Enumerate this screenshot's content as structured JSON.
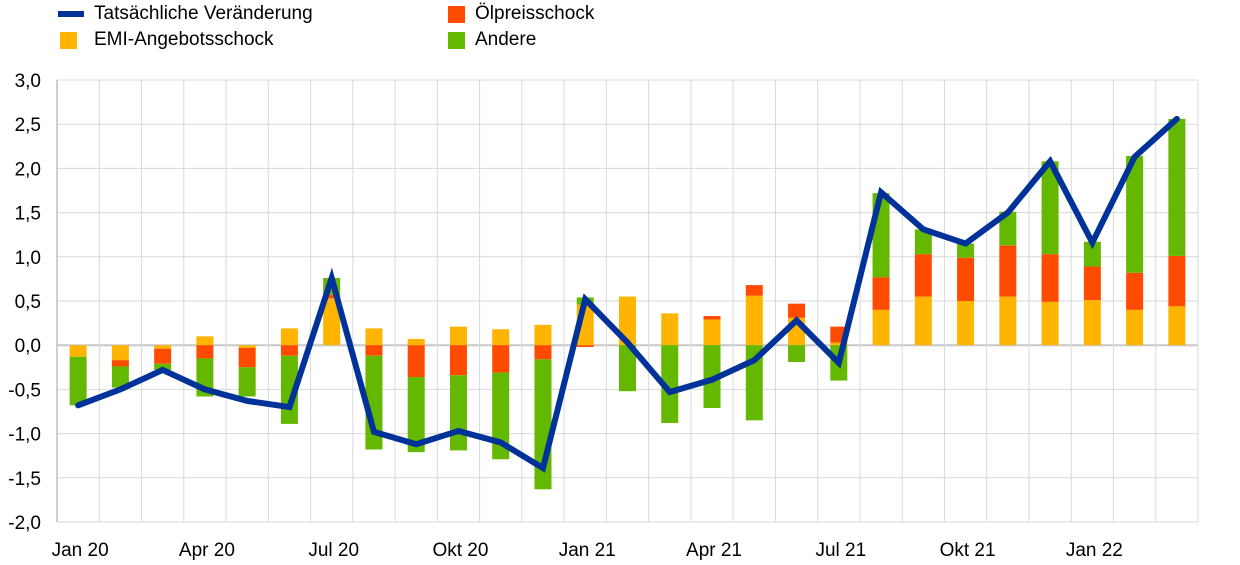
{
  "chart_data": {
    "type": "bar",
    "stacked": true,
    "title": "",
    "xlabel": "",
    "ylabel": "",
    "ylim": [
      -2.0,
      3.0
    ],
    "yticks": [
      "3,0",
      "2,5",
      "2,0",
      "1,5",
      "1,0",
      "0,5",
      "0,0",
      "-0,5",
      "-1,0",
      "-1,5",
      "-2,0"
    ],
    "ytick_values": [
      3.0,
      2.5,
      2.0,
      1.5,
      1.0,
      0.5,
      0.0,
      -0.5,
      -1.0,
      -1.5,
      -2.0
    ],
    "grid": true,
    "legend_placement": "top-left",
    "categories": [
      "Jan 20",
      "Feb 20",
      "Mär 20",
      "Apr 20",
      "Mai 20",
      "Jun 20",
      "Jul 20",
      "Aug 20",
      "Sep 20",
      "Okt 20",
      "Nov 20",
      "Dez 20",
      "Jan 21",
      "Feb 21",
      "Mär 21",
      "Apr 21",
      "Mai 21",
      "Jun 21",
      "Jul 21",
      "Aug 21",
      "Sep 21",
      "Okt 21",
      "Nov 21",
      "Dez 21",
      "Jan 22",
      "Feb 22",
      "Mär 22"
    ],
    "xtick_labels": [
      {
        "index": 0,
        "label": "Jan 20"
      },
      {
        "index": 3,
        "label": "Apr 20"
      },
      {
        "index": 6,
        "label": "Jul 20"
      },
      {
        "index": 9,
        "label": "Okt 20"
      },
      {
        "index": 12,
        "label": "Jan 21"
      },
      {
        "index": 15,
        "label": "Apr 21"
      },
      {
        "index": 18,
        "label": "Jul 21"
      },
      {
        "index": 21,
        "label": "Okt 21"
      },
      {
        "index": 24,
        "label": "Jan 22"
      }
    ],
    "series": [
      {
        "name": "EMI-Angebotsschock",
        "kind": "bar",
        "color": "#FFB400",
        "values": [
          -0.13,
          -0.17,
          -0.04,
          0.1,
          -0.03,
          0.19,
          0.53,
          0.19,
          0.07,
          0.21,
          0.18,
          0.23,
          0.46,
          0.55,
          0.36,
          0.29,
          0.56,
          0.31,
          0.03,
          0.4,
          0.55,
          0.5,
          0.55,
          0.49,
          0.51,
          0.4,
          0.44
        ]
      },
      {
        "name": "Ölpreisschock",
        "kind": "bar",
        "color": "#FF4B00",
        "values": [
          0.0,
          -0.07,
          -0.17,
          -0.15,
          -0.22,
          -0.12,
          0.04,
          -0.12,
          -0.36,
          -0.34,
          -0.31,
          -0.16,
          -0.02,
          0.0,
          0.0,
          0.04,
          0.12,
          0.16,
          0.18,
          0.37,
          0.48,
          0.49,
          0.58,
          0.54,
          0.38,
          0.42,
          0.57
        ]
      },
      {
        "name": "Andere",
        "kind": "bar",
        "color": "#65B800",
        "values": [
          -0.55,
          -0.24,
          -0.07,
          -0.43,
          -0.33,
          -0.77,
          0.19,
          -1.06,
          -0.85,
          -0.85,
          -0.98,
          -1.47,
          0.08,
          -0.52,
          -0.88,
          -0.71,
          -0.85,
          -0.19,
          -0.4,
          0.95,
          0.28,
          0.16,
          0.38,
          1.05,
          0.28,
          1.32,
          1.55
        ]
      },
      {
        "name": "Tatsächliche Veränderung",
        "kind": "line",
        "color": "#003299",
        "values": [
          -0.68,
          -0.5,
          -0.28,
          -0.5,
          -0.63,
          -0.7,
          0.76,
          -0.98,
          -1.12,
          -0.97,
          -1.1,
          -1.39,
          0.52,
          0.03,
          -0.53,
          -0.39,
          -0.17,
          0.28,
          -0.2,
          1.73,
          1.31,
          1.15,
          1.5,
          2.08,
          1.16,
          2.13,
          2.56
        ]
      }
    ]
  },
  "legend": [
    {
      "label": "Tatsächliche Veränderung",
      "kind": "line",
      "color": "#003299"
    },
    {
      "label": "Ölpreisschock",
      "kind": "box",
      "color": "#FF4B00"
    },
    {
      "label": "EMI-Angebotsschock",
      "kind": "box",
      "color": "#FFB400"
    },
    {
      "label": "Andere",
      "kind": "box",
      "color": "#65B800"
    }
  ]
}
